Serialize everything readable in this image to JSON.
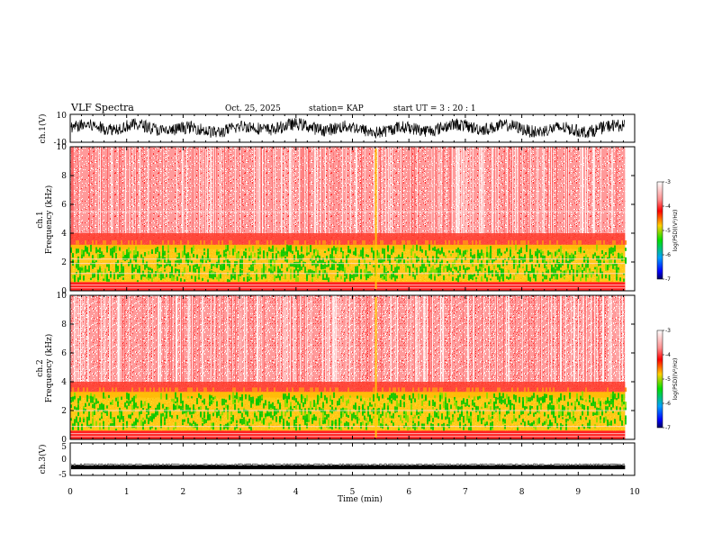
{
  "header": {
    "title": "VLF Spectra",
    "date": "Oct. 25, 2025",
    "station": "station= KAP",
    "start": "start  UT =   3 : 20 : 1"
  },
  "colors": {
    "spec_low": "#00c800",
    "spec_mid": "#ffd000",
    "spec_high": "#ff2020",
    "wave": "#000000"
  },
  "chart_data": {
    "type": "spectrogram",
    "x_label": "Time (min)",
    "x_range": [
      0,
      10
    ],
    "x_ticks": [
      "0",
      "1",
      "2",
      "3",
      "4",
      "5",
      "6",
      "7",
      "8",
      "9",
      "10"
    ],
    "data_end_min": 9.83,
    "panels": [
      {
        "id": "ch1_wave",
        "type": "line",
        "ylabel": "ch.1(V)",
        "y_range": [
          -10,
          10
        ],
        "y_ticks": [
          "10",
          "-10"
        ],
        "mean": 0,
        "amplitude": 5
      },
      {
        "id": "ch1_spec",
        "type": "heatmap",
        "ylabel_channel": "ch.1",
        "ylabel": "Frequency (kHz)",
        "y_range": [
          0,
          10
        ],
        "y_ticks": [
          "0",
          "2",
          "4",
          "6",
          "8",
          "10"
        ],
        "colorbar_label": "log(PSD)(V²/Hz)",
        "colorbar_range": [
          -7,
          -3
        ],
        "colorbar_ticks": [
          "-3",
          "-4",
          "-5",
          "-6",
          "-7"
        ],
        "strong_band_khz": [
          0.6,
          3.2
        ],
        "lines_khz": [
          0.2,
          0.4,
          1.2,
          1.9,
          2.2,
          5.5
        ]
      },
      {
        "id": "ch2_spec",
        "type": "heatmap",
        "ylabel_channel": "ch.2",
        "ylabel": "Frequency (kHz)",
        "y_range": [
          0,
          10
        ],
        "y_ticks": [
          "0",
          "2",
          "4",
          "6",
          "8",
          "10"
        ],
        "colorbar_label": "log(PSD)(V²/Hz)",
        "colorbar_range": [
          -7,
          -3
        ],
        "colorbar_ticks": [
          "-3",
          "-4",
          "-5",
          "-6",
          "-7"
        ],
        "strong_band_khz": [
          0.6,
          3.3
        ],
        "lines_khz": [
          0.2,
          0.4,
          0.9,
          2.0
        ]
      },
      {
        "id": "ch3_wave",
        "type": "line",
        "ylabel": "ch.3(V)",
        "y_range": [
          -5,
          5
        ],
        "y_ticks": [
          "5",
          "0",
          "-5"
        ],
        "mean": -2.5,
        "amplitude": 0.6
      }
    ]
  }
}
